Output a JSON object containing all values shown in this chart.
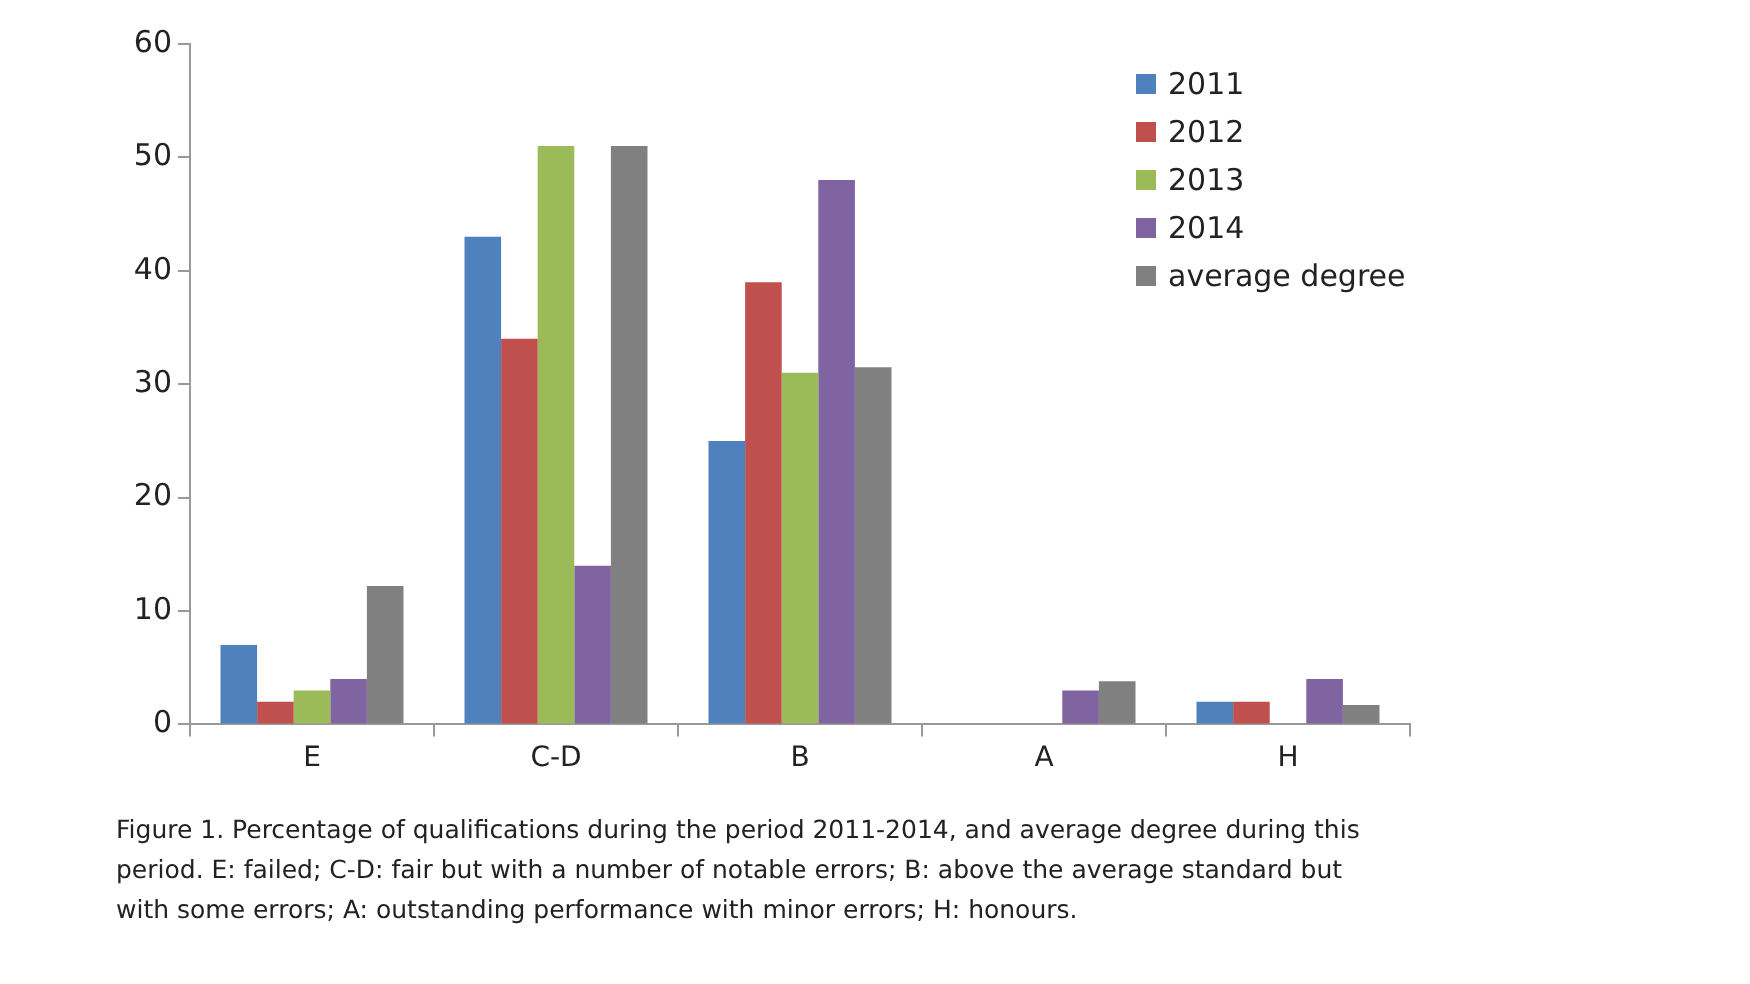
{
  "chart_data": {
    "type": "bar",
    "categories": [
      "E",
      "C-D",
      "B",
      "A",
      "H"
    ],
    "series": [
      {
        "name": "2011",
        "color": "#4f81bd",
        "values": [
          7,
          43,
          25,
          0,
          2
        ]
      },
      {
        "name": "2012",
        "color": "#c0504d",
        "values": [
          2,
          34,
          39,
          0,
          2
        ]
      },
      {
        "name": "2013",
        "color": "#9bbb59",
        "values": [
          3,
          51,
          31,
          0,
          0
        ]
      },
      {
        "name": "2014",
        "color": "#8064a2",
        "values": [
          4,
          14,
          48,
          3,
          4
        ]
      },
      {
        "name": "average degree",
        "color": "#808080",
        "values": [
          12.2,
          51,
          31.5,
          3.8,
          1.7
        ]
      }
    ],
    "ylim": [
      0,
      60
    ],
    "yticks": [
      0,
      10,
      20,
      30,
      40,
      50,
      60
    ],
    "grid": false,
    "legend": "top right",
    "annotations": [
      "Figure 1. Percentage of qualifications during the period 2011-2014, and average degree during this period. E: failed; C-D: fair but with a number of notable errors; B: above the average standard but with some errors; A: outstanding performance with minor errors; H: honours."
    ]
  }
}
